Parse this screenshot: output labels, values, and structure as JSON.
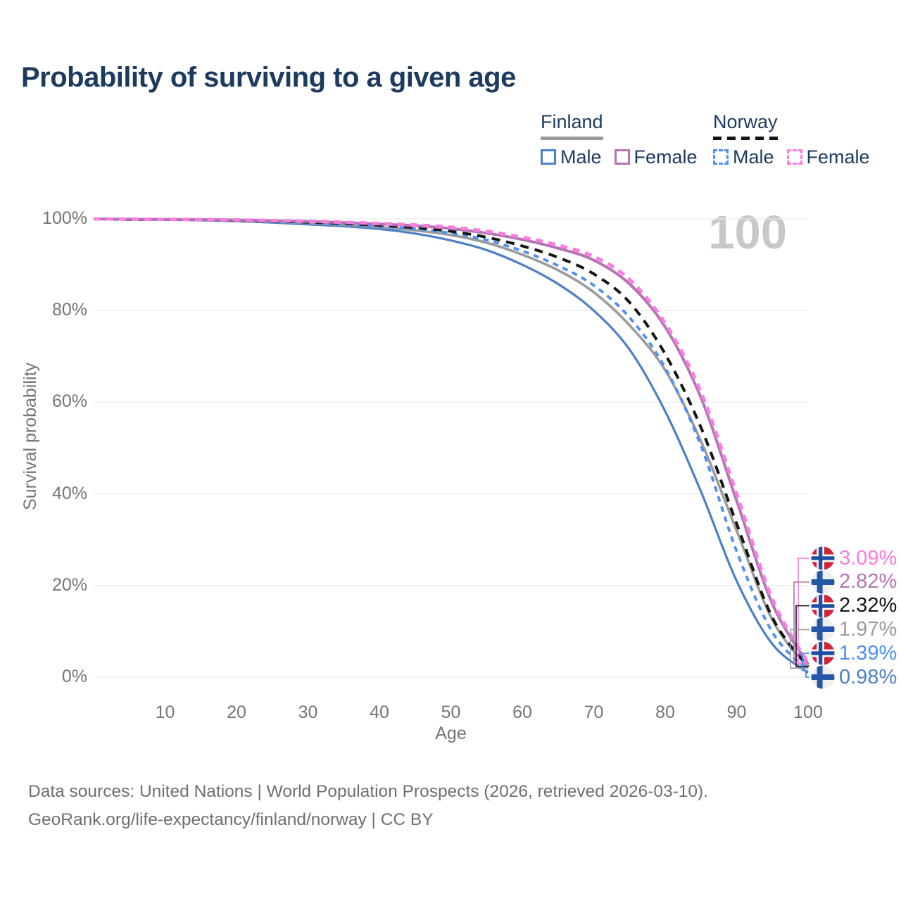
{
  "title": "Probability of surviving to a given age",
  "watermark": "100",
  "legend": {
    "groups": [
      {
        "label": "Finland",
        "line_style": "solid",
        "line_color": "#9b9b9b",
        "items": [
          {
            "label": "Male",
            "color": "#4d7fc8",
            "dashed": false
          },
          {
            "label": "Female",
            "color": "#b474b4",
            "dashed": false
          }
        ]
      },
      {
        "label": "Norway",
        "line_style": "dashed",
        "line_color": "#141414",
        "items": [
          {
            "label": "Male",
            "color": "#4f8ff5",
            "dashed": true
          },
          {
            "label": "Female",
            "color": "#fb7ce0",
            "dashed": true
          }
        ]
      }
    ]
  },
  "chart_data": {
    "type": "line",
    "title": "Probability of surviving to a given age",
    "xlabel": "Age",
    "ylabel": "Survival probability",
    "xlim": [
      0,
      100
    ],
    "ylim": [
      0,
      100
    ],
    "grid": "horizontal",
    "legend_position": "top-right",
    "x_ticks": [
      10,
      20,
      30,
      40,
      50,
      60,
      70,
      80,
      90,
      100
    ],
    "y_ticks": [
      "100%",
      "80%",
      "60%",
      "40%",
      "20%",
      "0%"
    ],
    "x": [
      0,
      5,
      10,
      15,
      20,
      25,
      30,
      35,
      40,
      45,
      50,
      55,
      60,
      65,
      70,
      75,
      80,
      85,
      90,
      95,
      100
    ],
    "series": [
      {
        "name": "Finland Male",
        "country": "Finland",
        "sex": "Male",
        "color": "#4d7fc8",
        "dashed": false,
        "width": 3.2,
        "values": [
          100,
          99.9,
          99.8,
          99.7,
          99.5,
          99.2,
          98.8,
          98.4,
          97.8,
          96.8,
          95.3,
          93.2,
          90.0,
          85.8,
          80.0,
          71.5,
          58.0,
          40.5,
          21.0,
          7.2,
          0.98
        ]
      },
      {
        "name": "Finland",
        "country": "Finland",
        "sex": "Both sexes",
        "color": "#9b9b9b",
        "dashed": false,
        "width": 3.6,
        "values": [
          100,
          99.9,
          99.85,
          99.8,
          99.6,
          99.4,
          99.1,
          98.7,
          98.2,
          97.5,
          96.5,
          94.8,
          92.2,
          88.8,
          84.0,
          76.8,
          67.0,
          51.5,
          32.0,
          12.5,
          1.97
        ]
      },
      {
        "name": "Norway Male",
        "country": "Norway",
        "sex": "Male",
        "color": "#4f8ff5",
        "dashed": true,
        "dash_pattern": "8 7",
        "width": 3.8,
        "values": [
          100,
          99.9,
          99.85,
          99.8,
          99.65,
          99.45,
          99.2,
          98.8,
          98.4,
          97.8,
          96.9,
          95.4,
          93.0,
          89.8,
          85.5,
          78.5,
          67.5,
          50.5,
          27.5,
          9.8,
          1.39
        ]
      },
      {
        "name": "Norway",
        "country": "Norway",
        "sex": "Both sexes",
        "color": "#141414",
        "dashed": true,
        "dash_pattern": "12 9",
        "width": 4.0,
        "values": [
          100,
          99.9,
          99.9,
          99.85,
          99.7,
          99.5,
          99.3,
          99.0,
          98.6,
          98.1,
          97.3,
          96.0,
          94.1,
          91.6,
          88.0,
          81.8,
          70.5,
          54.5,
          33.5,
          13.0,
          2.32
        ]
      },
      {
        "name": "Finland Female",
        "country": "Finland",
        "sex": "Female",
        "color": "#b474b4",
        "dashed": false,
        "width": 4.0,
        "values": [
          100,
          99.95,
          99.9,
          99.85,
          99.75,
          99.6,
          99.45,
          99.2,
          98.9,
          98.5,
          97.9,
          96.9,
          95.5,
          93.6,
          91.0,
          85.8,
          76.4,
          61.0,
          38.5,
          16.0,
          2.82
        ]
      },
      {
        "name": "Norway Female",
        "country": "Norway",
        "sex": "Female",
        "color": "#fb7ce0",
        "dashed": true,
        "dash_pattern": "10 8",
        "width": 4.8,
        "values": [
          100,
          99.95,
          99.9,
          99.87,
          99.8,
          99.65,
          99.5,
          99.3,
          99.0,
          98.7,
          98.2,
          97.3,
          96.0,
          94.3,
          91.8,
          86.8,
          77.2,
          62.2,
          40.0,
          17.0,
          3.09
        ]
      }
    ],
    "end_labels": [
      {
        "value": "3.09%",
        "num": 3.09,
        "series": "Norway Female",
        "flag": "norway",
        "color": "#fb7ce0"
      },
      {
        "value": "2.82%",
        "num": 2.82,
        "series": "Finland Female",
        "flag": "finland",
        "color": "#b474b4"
      },
      {
        "value": "2.32%",
        "num": 2.32,
        "series": "Norway",
        "flag": "norway",
        "color": "#141414"
      },
      {
        "value": "1.97%",
        "num": 1.97,
        "series": "Finland",
        "flag": "finland",
        "color": "#9b9b9b"
      },
      {
        "value": "1.39%",
        "num": 1.39,
        "series": "Norway Male",
        "flag": "norway",
        "color": "#4f8ff5"
      },
      {
        "value": "0.98%",
        "num": 0.98,
        "series": "Finland Male",
        "flag": "finland",
        "color": "#4d7fc8"
      }
    ],
    "flag_colors": {
      "norway": {
        "background": "#d0243c",
        "cross_outer": "#ffffff",
        "cross_inner": "#1d4fa5"
      },
      "finland": {
        "background": "#efefef",
        "cross": "#2457a7"
      }
    }
  },
  "footer": {
    "line1": "Data sources: United Nations | World Population Prospects (2026, retrieved 2026-03-10).",
    "line2": "GeoRank.org/life-expectancy/finland/norway | CC BY"
  }
}
